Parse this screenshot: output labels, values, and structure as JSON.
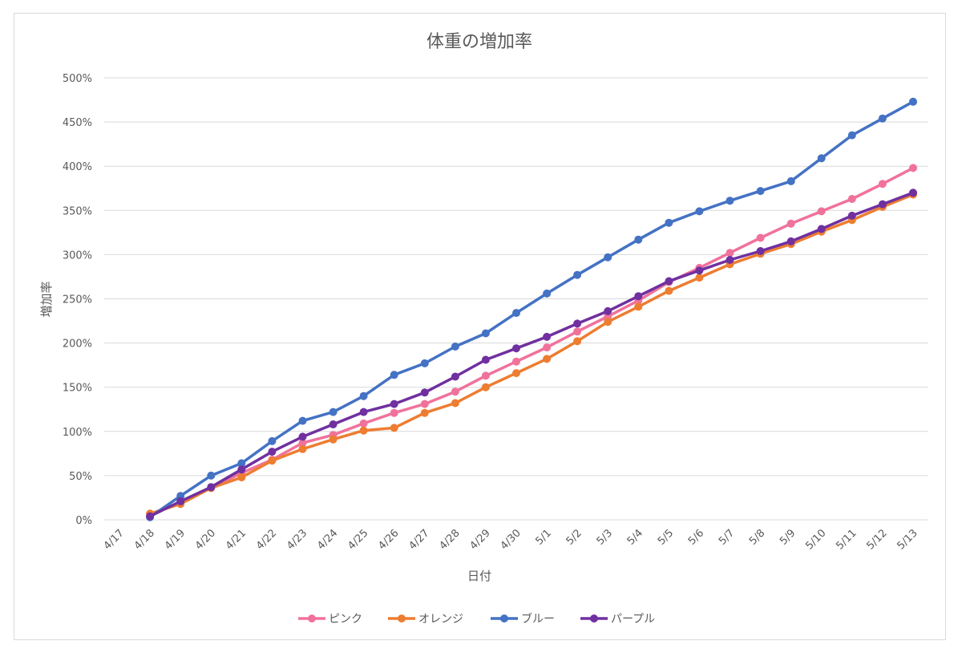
{
  "chart_data": {
    "type": "line",
    "title": "体重の増加率",
    "xlabel": "日付",
    "ylabel": "増加率",
    "categories": [
      "4/17",
      "4/18",
      "4/19",
      "4/20",
      "4/21",
      "4/22",
      "4/23",
      "4/24",
      "4/25",
      "4/26",
      "4/27",
      "4/28",
      "4/29",
      "4/30",
      "5/1",
      "5/2",
      "5/3",
      "5/4",
      "5/5",
      "5/6",
      "5/7",
      "5/8",
      "5/9",
      "5/10",
      "5/11",
      "5/12",
      "5/13"
    ],
    "y_ticks": [
      "0%",
      "50%",
      "100%",
      "150%",
      "200%",
      "250%",
      "300%",
      "350%",
      "400%",
      "450%",
      "500%"
    ],
    "ylim": [
      0,
      500
    ],
    "y_unit": "%",
    "grid": true,
    "legend_position": "bottom",
    "series": [
      {
        "name": "ピンク",
        "color": "#f0729b",
        "values": [
          null,
          5,
          20,
          36,
          53,
          68,
          87,
          96,
          109,
          121,
          131,
          145,
          163,
          179,
          195,
          213,
          230,
          248,
          269,
          285,
          302,
          319,
          335,
          349,
          363,
          380,
          398
        ]
      },
      {
        "name": "オレンジ",
        "color": "#ed7d31",
        "values": [
          null,
          7,
          18,
          36,
          48,
          67,
          80,
          91,
          101,
          104,
          121,
          132,
          150,
          166,
          182,
          202,
          224,
          241,
          259,
          274,
          289,
          301,
          312,
          326,
          339,
          354,
          368
        ]
      },
      {
        "name": "ブルー",
        "color": "#4472c4",
        "values": [
          null,
          3,
          27,
          50,
          64,
          89,
          112,
          122,
          140,
          164,
          177,
          196,
          211,
          234,
          256,
          277,
          297,
          317,
          336,
          349,
          361,
          372,
          383,
          409,
          435,
          454,
          473
        ]
      },
      {
        "name": "パープル",
        "color": "#7030a0",
        "values": [
          null,
          4,
          21,
          37,
          57,
          77,
          94,
          108,
          122,
          131,
          144,
          162,
          181,
          194,
          207,
          222,
          236,
          253,
          270,
          282,
          294,
          304,
          315,
          329,
          344,
          357,
          370
        ]
      }
    ]
  }
}
